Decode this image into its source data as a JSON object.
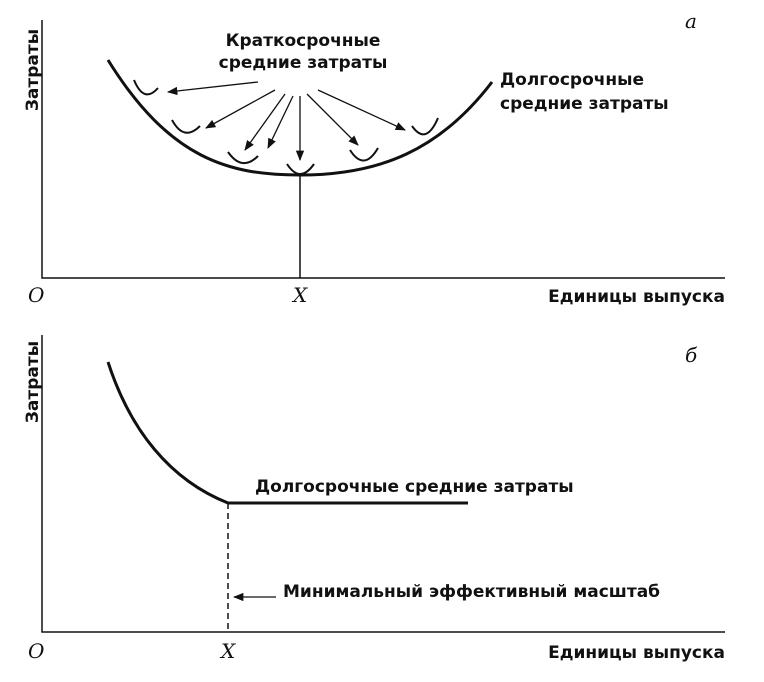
{
  "panels": [
    {
      "letter": "а",
      "y_axis_label": "Затраты",
      "x_axis_label": "Единицы выпуска",
      "origin": "О",
      "x_marker": "X",
      "labels": {
        "short_run_line1": "Краткосрочные",
        "short_run_line2": "средние затраты",
        "long_run_line1": "Долгосрочные",
        "long_run_line2": "средние затраты"
      }
    },
    {
      "letter": "б",
      "y_axis_label": "Затраты",
      "x_axis_label": "Единицы выпуска",
      "origin": "О",
      "x_marker": "X",
      "labels": {
        "long_run": "Долгосрочные средние затраты",
        "min_scale": "Минимальный эффективный масштаб"
      }
    }
  ]
}
